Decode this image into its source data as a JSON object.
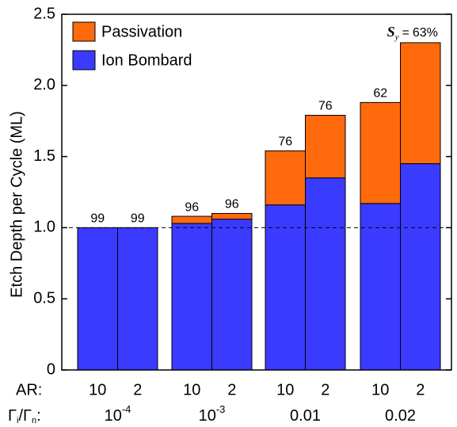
{
  "chart_data": {
    "type": "stacked-bar",
    "ylabel": "Etch Depth per Cycle (ML)",
    "ylim": [
      0,
      2.5
    ],
    "yticks": [
      0,
      0.5,
      {
        "value": 1,
        "label": "1.0"
      },
      1.5,
      {
        "value": 2,
        "label": "2.0"
      },
      2.5
    ],
    "hline": 1,
    "categories": [
      "10",
      "2",
      "10",
      "2",
      "10",
      "2",
      "10",
      "2"
    ],
    "category_row_label": "AR:",
    "groups": [
      {
        "base": "10",
        "exponent": "-4"
      },
      {
        "base": "10",
        "exponent": "-3"
      },
      {
        "base": "0.01"
      },
      {
        "base": "0.02"
      }
    ],
    "group_row_label": [
      "Γ",
      "i",
      "/Γ",
      "n",
      ":"
    ],
    "legend": "upper left",
    "series": [
      {
        "name": "Ion Bombard",
        "color": "#3b3bff",
        "values": [
          1.0,
          1.0,
          1.03,
          1.06,
          1.16,
          1.35,
          1.17,
          1.45
        ]
      },
      {
        "name": "Passivation",
        "color": "#ff6a0d",
        "values": [
          0,
          0,
          0.05,
          0.04,
          0.38,
          0.44,
          0.71,
          0.85
        ]
      }
    ],
    "selectivity": {
      "symbol": "S",
      "subscript": "y",
      "relation": "=",
      "values": [
        99,
        99,
        96,
        96,
        76,
        76,
        62,
        63
      ],
      "value_labels": [
        "99",
        "99",
        "96",
        "96",
        "76",
        "76",
        "62",
        "63%"
      ]
    }
  }
}
